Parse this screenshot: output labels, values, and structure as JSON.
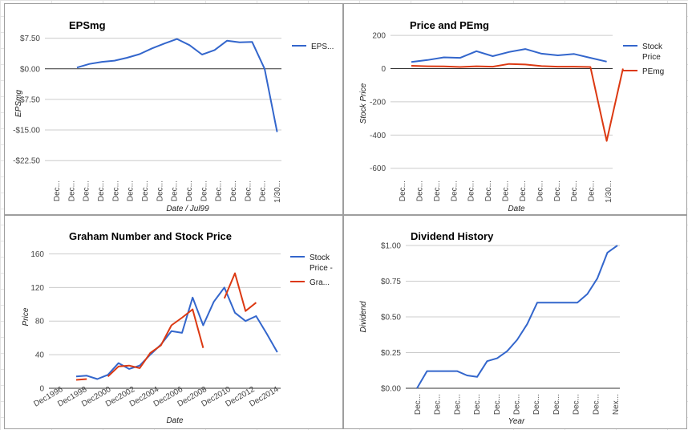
{
  "chart_data": [
    {
      "id": "eps",
      "type": "line",
      "title": "EPSmg",
      "xlabel": "Date / Jul99",
      "ylabel": "EPSmg",
      "ylim": [
        -26,
        9
      ],
      "yticks": [
        7.5,
        0,
        -7.5,
        -15,
        -22.5
      ],
      "ytick_labels": [
        "$7.50",
        "$0.00",
        "-$7.50",
        "-$15.00",
        "-$22.50"
      ],
      "x_tick_labels": [
        "Dec...",
        "Dec...",
        "Dec...",
        "Dec...",
        "Dec...",
        "Dec...",
        "Dec...",
        "Dec...",
        "Dec...",
        "Dec...",
        "Dec...",
        "Dec...",
        "Dec...",
        "Dec...",
        "Dec...",
        "1/30..."
      ],
      "legend_position": "right",
      "series": [
        {
          "name": "EPS...",
          "color": "#3366cc",
          "values": [
            0.3,
            1.2,
            1.7,
            2.0,
            2.7,
            3.6,
            5.0,
            6.2,
            7.3,
            5.8,
            3.5,
            4.6,
            6.9,
            6.5,
            6.6,
            0.0,
            -15.5
          ]
        }
      ]
    },
    {
      "id": "price-pe",
      "type": "line",
      "title": "Price and PEmg",
      "xlabel": "Date",
      "ylabel": "Stock Price",
      "ylim": [
        -640,
        220
      ],
      "yticks": [
        200,
        0,
        -200,
        -400,
        -600
      ],
      "ytick_labels": [
        "200",
        "0",
        "-200",
        "-400",
        "-600"
      ],
      "x_tick_labels": [
        "Dec...",
        "Dec...",
        "Dec...",
        "Dec...",
        "Dec...",
        "Dec...",
        "Dec...",
        "Dec...",
        "Dec...",
        "Dec...",
        "Dec...",
        "Dec...",
        "1/30..."
      ],
      "legend_position": "right",
      "series": [
        {
          "name": "Stock Price",
          "color": "#3366cc",
          "values": [
            40,
            52,
            68,
            65,
            105,
            75,
            100,
            118,
            90,
            80,
            88,
            65,
            42
          ]
        },
        {
          "name": "PEmg",
          "color": "#dc3912",
          "values": [
            17,
            14,
            13,
            10,
            14,
            12,
            28,
            25,
            15,
            12,
            12,
            10,
            -435,
            0
          ]
        }
      ]
    },
    {
      "id": "graham",
      "type": "line",
      "title": "Graham Number and Stock Price",
      "xlabel": "Date",
      "ylabel": "Price",
      "ylim": [
        0,
        170
      ],
      "yticks": [
        0,
        40,
        80,
        120,
        160
      ],
      "ytick_labels": [
        "0",
        "40",
        "80",
        "120",
        "160"
      ],
      "x_tick_labels": [
        "Dec1996",
        "Dec1998",
        "Dec2000",
        "Dec2002",
        "Dec2004",
        "Dec2006",
        "Dec2008",
        "Dec2010",
        "Dec2012",
        "Dec2014"
      ],
      "legend_position": "right",
      "series": [
        {
          "name": "Stock Price -",
          "color": "#3366cc",
          "values": [
            14,
            15,
            11,
            16,
            30,
            23,
            27,
            40,
            52,
            68,
            66,
            108,
            75,
            103,
            120,
            90,
            80,
            86,
            65,
            43
          ]
        },
        {
          "name": "Gra...",
          "color": "#dc3912",
          "values": [
            10,
            11,
            null,
            14,
            26,
            27,
            24,
            42,
            51,
            75,
            84,
            94,
            48,
            null,
            107,
            137,
            92,
            102
          ]
        }
      ]
    },
    {
      "id": "dividend",
      "type": "line",
      "title": "Dividend History",
      "xlabel": "Year",
      "ylabel": "Dividend",
      "ylim": [
        0,
        1.0
      ],
      "yticks": [
        0,
        0.25,
        0.5,
        0.75,
        1.0
      ],
      "ytick_labels": [
        "$0.00",
        "$0.25",
        "$0.50",
        "$0.75",
        "$1.00"
      ],
      "x_tick_labels": [
        "Dec...",
        "Dec...",
        "Dec...",
        "Dec...",
        "Dec...",
        "Dec...",
        "Dec...",
        "Dec...",
        "Dec...",
        "Dec...",
        "Nex..."
      ],
      "legend_position": "none",
      "series": [
        {
          "name": "",
          "color": "#3366cc",
          "values": [
            0,
            0.12,
            0.12,
            0.12,
            0.12,
            0.09,
            0.08,
            0.19,
            0.21,
            0.26,
            0.34,
            0.45,
            0.6,
            0.6,
            0.6,
            0.6,
            0.6,
            0.66,
            0.77,
            0.95,
            1.0
          ]
        }
      ]
    }
  ]
}
